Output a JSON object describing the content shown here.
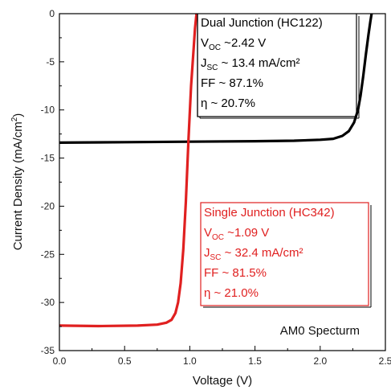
{
  "chart_data": {
    "type": "line",
    "xlabel": "Voltage (V)",
    "ylabel_parts": {
      "pre": "Current Density (mA/cm",
      "sup": "2",
      "post": ")"
    },
    "xlim": [
      0,
      2.5
    ],
    "ylim": [
      -35,
      0
    ],
    "xticks": [
      0.0,
      0.5,
      1.0,
      1.5,
      2.0,
      2.5
    ],
    "xtick_labels": [
      "0.0",
      "0.5",
      "1.0",
      "1.5",
      "2.0",
      "2.5"
    ],
    "yticks": [
      0,
      -5,
      -10,
      -15,
      -20,
      -25,
      -30,
      -35
    ],
    "ytick_labels": [
      "0",
      "-5",
      "-10",
      "-15",
      "-20",
      "-25",
      "-30",
      "-35"
    ],
    "grid": false,
    "annotation": "AM0 Specturm",
    "series": [
      {
        "name": "Dual Junction (HC122)",
        "color": "#000000",
        "x": [
          0.0,
          0.5,
          1.0,
          1.5,
          1.8,
          2.0,
          2.1,
          2.17,
          2.22,
          2.26,
          2.29,
          2.31,
          2.33,
          2.35,
          2.37,
          2.385,
          2.4
        ],
        "y": [
          -13.4,
          -13.35,
          -13.3,
          -13.25,
          -13.2,
          -13.1,
          -13.0,
          -12.7,
          -12.2,
          -11.3,
          -10.0,
          -8.5,
          -6.5,
          -4.3,
          -2.2,
          -0.8,
          0.5
        ],
        "annotations": {
          "title": "Dual Junction (HC122)",
          "voc_prefix": "V",
          "voc_sub": "OC",
          "voc_value": " ~2.42 V",
          "jsc_prefix": "J",
          "jsc_sub": "SC",
          "jsc_value": " ~ 13.4 mA/cm²",
          "ff": "FF ~ 87.1%",
          "eta": "η ~ 20.7%"
        }
      },
      {
        "name": "Single Junction (HC342)",
        "color": "#e02020",
        "x": [
          0.0,
          0.3,
          0.6,
          0.75,
          0.82,
          0.86,
          0.89,
          0.91,
          0.93,
          0.95,
          0.97,
          0.99,
          1.01,
          1.03,
          1.04,
          1.05,
          1.06
        ],
        "y": [
          -32.4,
          -32.45,
          -32.4,
          -32.3,
          -32.1,
          -31.8,
          -31.1,
          -30.0,
          -28.0,
          -24.5,
          -19.5,
          -13.0,
          -7.5,
          -3.5,
          -1.5,
          -0.2,
          1.5
        ],
        "annotations": {
          "title": "Single Junction (HC342)",
          "voc_prefix": "V",
          "voc_sub": "OC",
          "voc_value": " ~1.09 V",
          "jsc_prefix": "J",
          "jsc_sub": "SC",
          "jsc_value": " ~ 32.4 mA/cm²",
          "ff": "FF ~ 81.5%",
          "eta": "η ~ 21.0%"
        }
      }
    ]
  }
}
